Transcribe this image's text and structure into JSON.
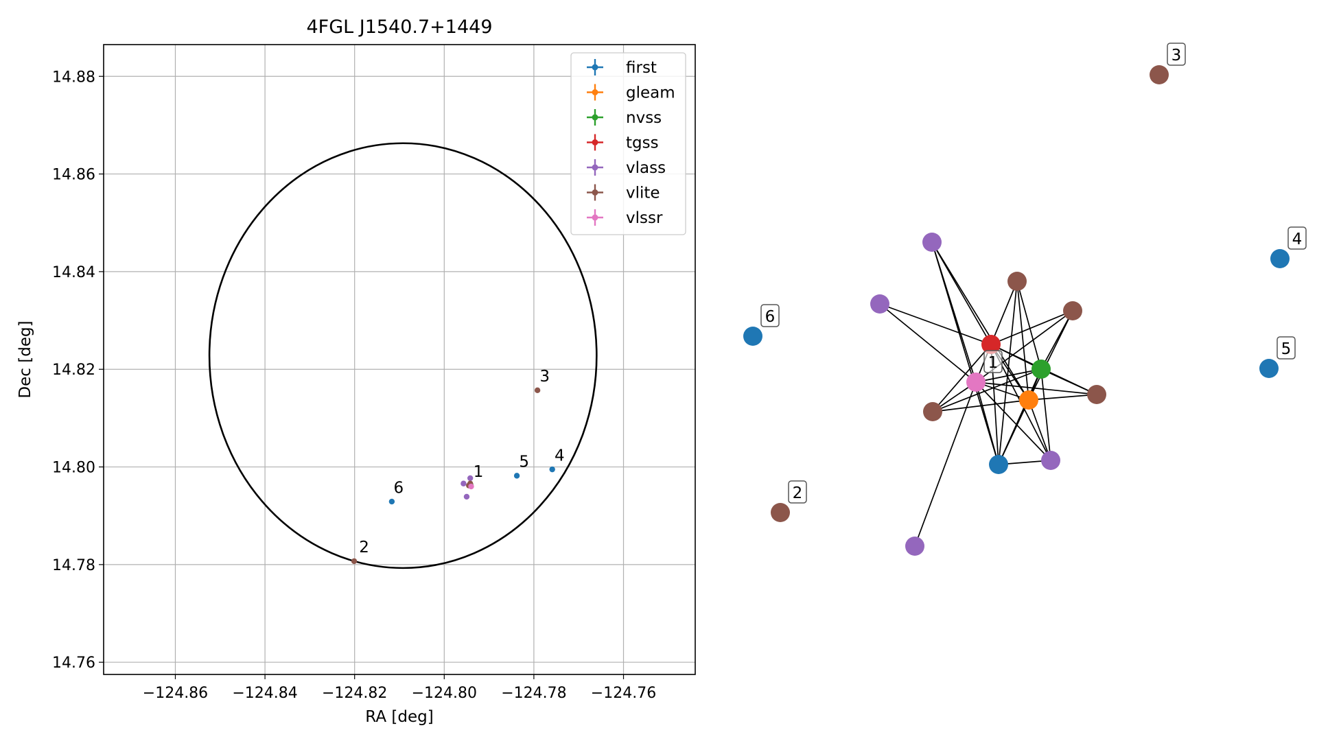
{
  "chart_data": [
    {
      "type": "scatter",
      "title": "4FGL J1540.7+1449",
      "xlabel": "RA [deg]",
      "ylabel": "Dec [deg]",
      "xlim": [
        -124.876,
        -124.744
      ],
      "ylim": [
        14.7575,
        14.8865
      ],
      "xticks": [
        -124.86,
        -124.84,
        -124.82,
        -124.8,
        -124.78,
        -124.76
      ],
      "xtick_labels": [
        "−124.86",
        "−124.84",
        "−124.82",
        "−124.80",
        "−124.78",
        "−124.76"
      ],
      "yticks": [
        14.76,
        14.78,
        14.8,
        14.82,
        14.84,
        14.86,
        14.88
      ],
      "ytick_labels": [
        "14.76",
        "14.78",
        "14.80",
        "14.82",
        "14.84",
        "14.86",
        "14.88"
      ],
      "grid": true,
      "legend_position": "top-right",
      "circle": {
        "center": [
          -124.8092,
          14.8228
        ],
        "radius_ra": 0.0432,
        "radius_dec": 0.0435,
        "color": "#000000"
      },
      "series": [
        {
          "name": "first",
          "color": "#1f77b4",
          "points": [
            [
              -124.7759,
              14.7995
            ],
            [
              -124.7838,
              14.7982
            ],
            [
              -124.8117,
              14.7929
            ]
          ]
        },
        {
          "name": "gleam",
          "color": "#ff7f0e",
          "points": [
            [
              -124.7941,
              14.7961
            ]
          ]
        },
        {
          "name": "nvss",
          "color": "#2ca02c",
          "points": [
            [
              -124.7941,
              14.7963
            ]
          ]
        },
        {
          "name": "tgss",
          "color": "#d62728",
          "points": [
            [
              -124.7943,
              14.7962
            ]
          ]
        },
        {
          "name": "vlass",
          "color": "#9467bd",
          "points": [
            [
              -124.7942,
              14.7977
            ],
            [
              -124.7957,
              14.7966
            ],
            [
              -124.795,
              14.7939
            ]
          ]
        },
        {
          "name": "vlite",
          "color": "#8c564b",
          "points": [
            [
              -124.7942,
              14.7966
            ],
            [
              -124.7945,
              14.7962
            ],
            [
              -124.7792,
              14.8157
            ],
            [
              -124.8201,
              14.7807
            ]
          ]
        },
        {
          "name": "vlssr",
          "color": "#e377c2",
          "points": [
            [
              -124.794,
              14.796
            ]
          ]
        }
      ],
      "annotations": [
        {
          "text": "1",
          "at": [
            -124.7935,
            14.798
          ]
        },
        {
          "text": "2",
          "at": [
            -124.819,
            14.7825
          ]
        },
        {
          "text": "3",
          "at": [
            -124.7787,
            14.8175
          ]
        },
        {
          "text": "4",
          "at": [
            -124.7754,
            14.8013
          ]
        },
        {
          "text": "5",
          "at": [
            -124.7833,
            14.8
          ]
        },
        {
          "text": "6",
          "at": [
            -124.8113,
            14.7947
          ]
        }
      ]
    },
    {
      "type": "network",
      "nodes": [
        {
          "id": "first_a",
          "color": "#1f77b4"
        },
        {
          "id": "first_4",
          "color": "#1f77b4",
          "label": "4"
        },
        {
          "id": "first_5",
          "color": "#1f77b4",
          "label": "5"
        },
        {
          "id": "first_6",
          "color": "#1f77b4",
          "label": "6"
        },
        {
          "id": "gleam",
          "color": "#ff7f0e"
        },
        {
          "id": "nvss",
          "color": "#2ca02c"
        },
        {
          "id": "tgss",
          "color": "#d62728"
        },
        {
          "id": "vlssr",
          "color": "#e377c2",
          "label": "1"
        },
        {
          "id": "vlass_a",
          "color": "#9467bd"
        },
        {
          "id": "vlass_b",
          "color": "#9467bd"
        },
        {
          "id": "vlass_c",
          "color": "#9467bd"
        },
        {
          "id": "vlass_d",
          "color": "#9467bd"
        },
        {
          "id": "vlite_a",
          "color": "#8c564b"
        },
        {
          "id": "vlite_b",
          "color": "#8c564b"
        },
        {
          "id": "vlite_c",
          "color": "#8c564b"
        },
        {
          "id": "vlite_d",
          "color": "#8c564b"
        },
        {
          "id": "vlite_2",
          "color": "#8c564b",
          "label": "2"
        },
        {
          "id": "vlite_3",
          "color": "#8c564b",
          "label": "3"
        }
      ],
      "edges": [
        [
          "tgss",
          "vlass_a"
        ],
        [
          "tgss",
          "vlass_b"
        ],
        [
          "tgss",
          "vlite_a"
        ],
        [
          "tgss",
          "vlite_b"
        ],
        [
          "tgss",
          "vlite_c"
        ],
        [
          "tgss",
          "vlite_d"
        ],
        [
          "tgss",
          "vlass_c"
        ],
        [
          "tgss",
          "first_a"
        ],
        [
          "tgss",
          "nvss"
        ],
        [
          "tgss",
          "gleam"
        ],
        [
          "tgss",
          "vlssr"
        ],
        [
          "vlssr",
          "vlass_a"
        ],
        [
          "vlssr",
          "vlass_b"
        ],
        [
          "vlssr",
          "vlite_b"
        ],
        [
          "vlssr",
          "vlite_c"
        ],
        [
          "vlssr",
          "vlite_d"
        ],
        [
          "vlssr",
          "vlass_c"
        ],
        [
          "vlssr",
          "nvss"
        ],
        [
          "vlssr",
          "vlass_d"
        ],
        [
          "vlssr",
          "first_a"
        ],
        [
          "vlssr",
          "gleam"
        ],
        [
          "nvss",
          "vlite_a"
        ],
        [
          "nvss",
          "vlite_b"
        ],
        [
          "nvss",
          "vlite_c"
        ],
        [
          "nvss",
          "vlass_c"
        ],
        [
          "nvss",
          "first_a"
        ],
        [
          "nvss",
          "vlite_d"
        ],
        [
          "nvss",
          "gleam"
        ],
        [
          "gleam",
          "vlite_a"
        ],
        [
          "gleam",
          "vlite_b"
        ],
        [
          "gleam",
          "vlite_c"
        ],
        [
          "gleam",
          "first_a"
        ],
        [
          "gleam",
          "vlass_c"
        ],
        [
          "gleam",
          "vlass_a"
        ],
        [
          "gleam",
          "vlite_d"
        ],
        [
          "vlass_a",
          "first_a"
        ],
        [
          "vlite_a",
          "first_a"
        ],
        [
          "first_a",
          "vlass_c"
        ]
      ]
    }
  ]
}
